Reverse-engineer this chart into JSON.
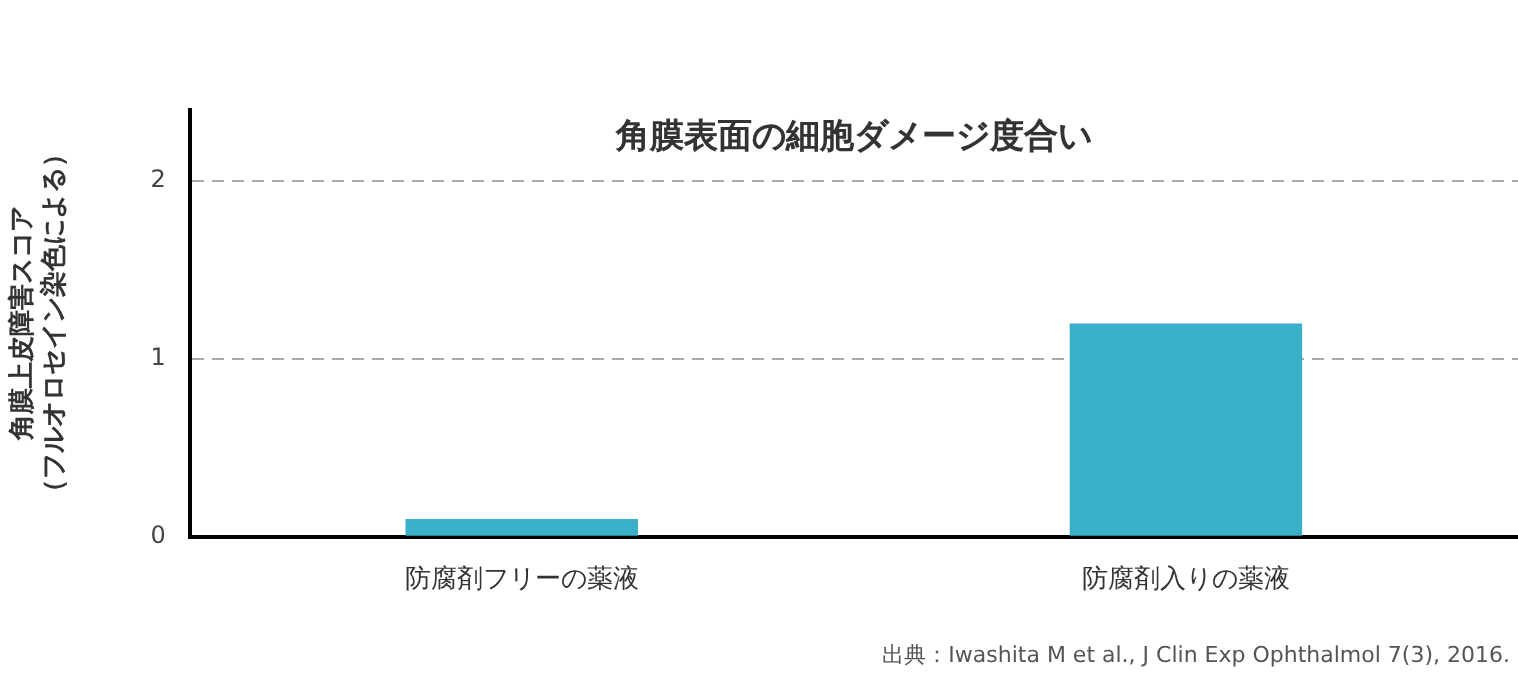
{
  "chart_data": {
    "type": "bar",
    "title": "角膜表面の細胞ダメージ度合い",
    "ylabel": "角膜上皮障害スコア（フルオロセイン染色による）",
    "categories": [
      "防腐剤フリーの薬液",
      "防腐剤入りの薬液"
    ],
    "values": [
      0.1,
      1.2
    ],
    "color": "#3aafc8",
    "ylim": [
      0,
      2.4
    ],
    "yticks": [
      0,
      1,
      2
    ],
    "grid": "y",
    "annotations": [
      "出典：Iwashita M et al., J Clin Exp Ophthalmol 7(3), 2016."
    ]
  }
}
